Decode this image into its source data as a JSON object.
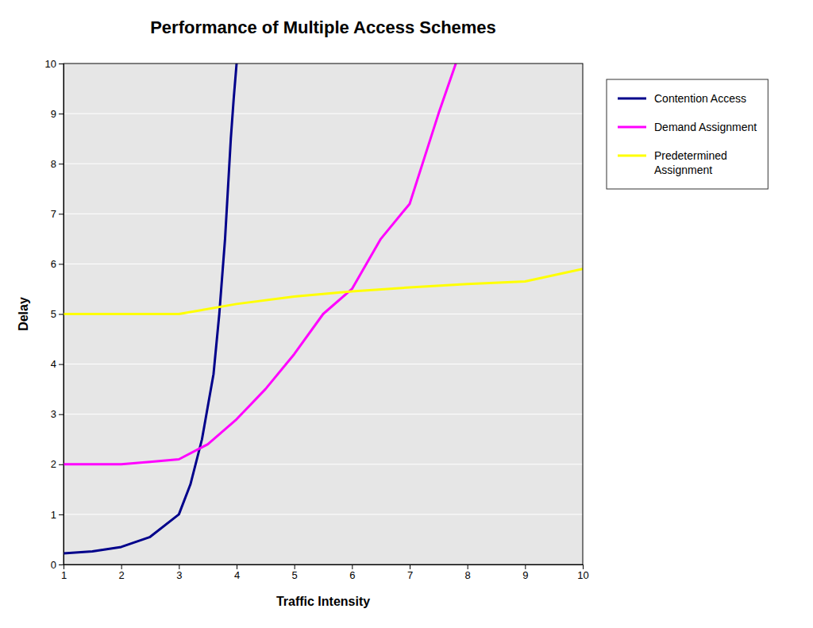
{
  "chart_data": {
    "type": "line",
    "title": "Performance of Multiple Access Schemes",
    "xlabel": "Traffic Intensity",
    "ylabel": "Delay",
    "xlim": [
      1,
      10
    ],
    "ylim": [
      0,
      10
    ],
    "xticks": [
      1,
      2,
      3,
      4,
      5,
      6,
      7,
      8,
      9,
      10
    ],
    "yticks": [
      0,
      1,
      2,
      3,
      4,
      5,
      6,
      7,
      8,
      9,
      10
    ],
    "grid": "y",
    "legend": "right",
    "series": [
      {
        "name": "Contention Access",
        "color": "#00008B",
        "x": [
          1.0,
          1.5,
          2.0,
          2.5,
          3.0,
          3.2,
          3.4,
          3.6,
          3.7,
          3.8,
          3.85,
          3.9,
          3.95,
          4.0
        ],
        "values": [
          0.22,
          0.26,
          0.35,
          0.55,
          1.0,
          1.6,
          2.5,
          3.8,
          5.0,
          6.5,
          7.5,
          8.5,
          9.3,
          10.0
        ]
      },
      {
        "name": "Demand Assignment",
        "color": "#FF00FF",
        "x": [
          1.0,
          1.5,
          2.0,
          2.5,
          3.0,
          3.5,
          4.0,
          4.5,
          5.0,
          5.5,
          6.0,
          6.5,
          7.0,
          7.5,
          7.8
        ],
        "values": [
          2.0,
          2.0,
          2.0,
          2.05,
          2.1,
          2.4,
          2.9,
          3.5,
          4.2,
          5.0,
          5.5,
          6.5,
          7.2,
          9.0,
          10.0
        ]
      },
      {
        "name": "Predetermined\nAssignment",
        "color": "#FFFF00",
        "x": [
          1.0,
          2.0,
          3.0,
          4.0,
          5.0,
          6.0,
          7.0,
          8.0,
          9.0,
          10.0
        ],
        "values": [
          5.0,
          5.0,
          5.0,
          5.2,
          5.35,
          5.45,
          5.53,
          5.6,
          5.65,
          5.9
        ]
      }
    ]
  }
}
